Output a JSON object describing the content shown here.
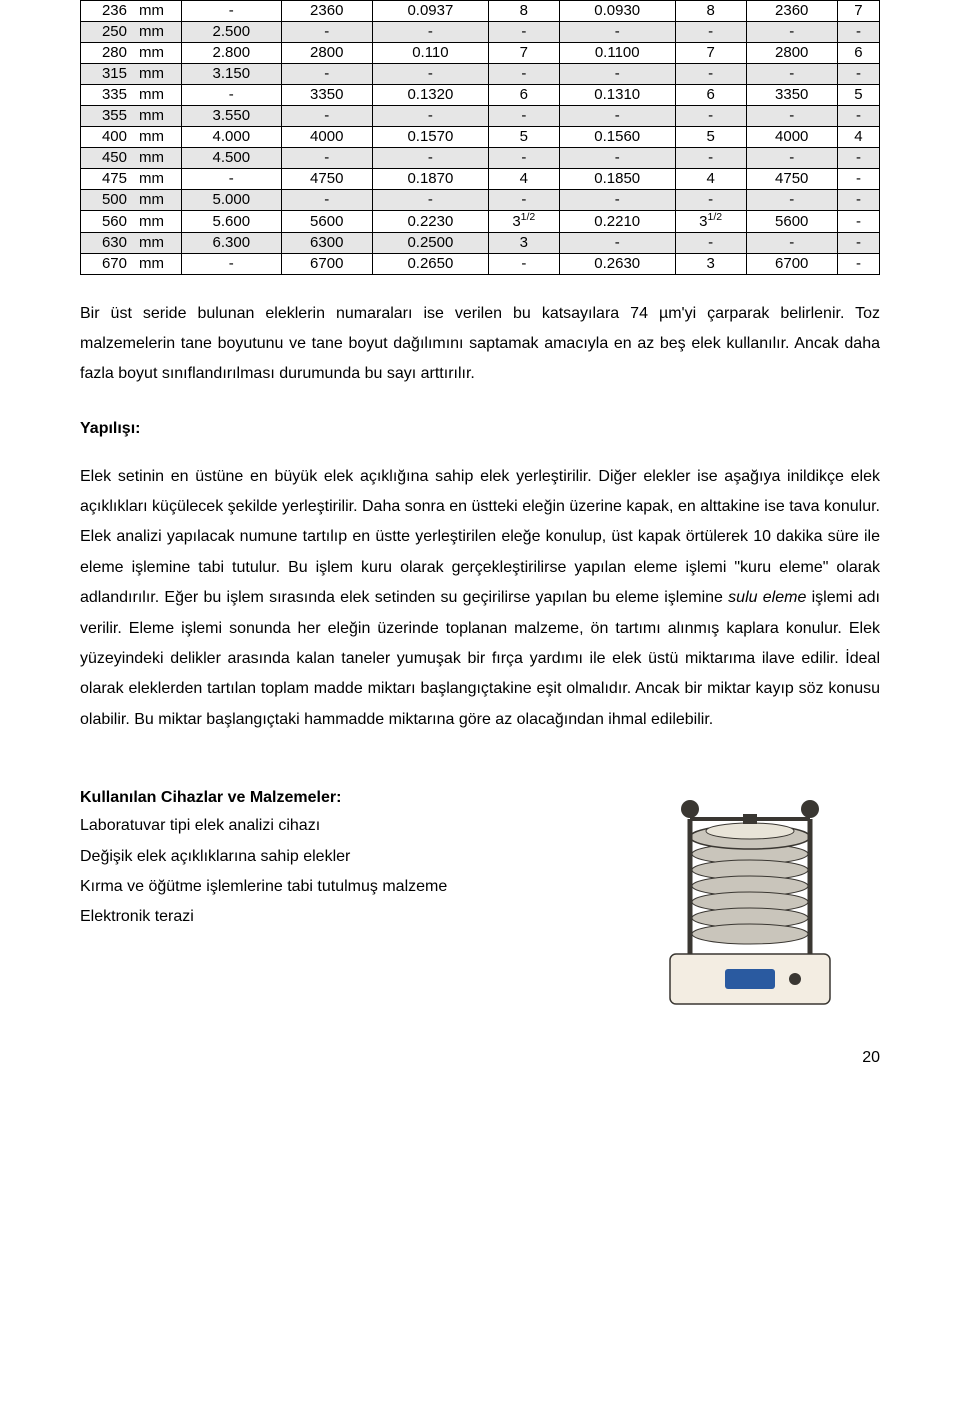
{
  "table": {
    "shaded_color": "#e6e6e6",
    "border_color": "#000000",
    "rows": [
      {
        "shade": false,
        "cells": [
          "236",
          "mm",
          "-",
          "2360",
          "0.0937",
          "8",
          "0.0930",
          "8",
          "2360",
          "7"
        ]
      },
      {
        "shade": true,
        "cells": [
          "250",
          "mm",
          "2.500",
          "-",
          "-",
          "-",
          "-",
          "-",
          "-",
          "-"
        ]
      },
      {
        "shade": false,
        "cells": [
          "280",
          "mm",
          "2.800",
          "2800",
          "0.110",
          "7",
          "0.1100",
          "7",
          "2800",
          "6"
        ]
      },
      {
        "shade": true,
        "cells": [
          "315",
          "mm",
          "3.150",
          "-",
          "-",
          "-",
          "-",
          "-",
          "-",
          "-"
        ]
      },
      {
        "shade": false,
        "cells": [
          "335",
          "mm",
          "-",
          "3350",
          "0.1320",
          "6",
          "0.1310",
          "6",
          "3350",
          "5"
        ]
      },
      {
        "shade": true,
        "cells": [
          "355",
          "mm",
          "3.550",
          "-",
          "-",
          "-",
          "-",
          "-",
          "-",
          "-"
        ]
      },
      {
        "shade": false,
        "cells": [
          "400",
          "mm",
          "4.000",
          "4000",
          "0.1570",
          "5",
          "0.1560",
          "5",
          "4000",
          "4"
        ]
      },
      {
        "shade": true,
        "cells": [
          "450",
          "mm",
          "4.500",
          "-",
          "-",
          "-",
          "-",
          "-",
          "-",
          "-"
        ]
      },
      {
        "shade": false,
        "cells": [
          "475",
          "mm",
          "-",
          "4750",
          "0.1870",
          "4",
          "0.1850",
          "4",
          "4750",
          "-"
        ]
      },
      {
        "shade": true,
        "cells": [
          "500",
          "mm",
          "5.000",
          "-",
          "-",
          "-",
          "-",
          "-",
          "-",
          "-"
        ]
      },
      {
        "shade": false,
        "cells": [
          "560",
          "mm",
          "5.600",
          "5600",
          "0.2230",
          "3<sup>1/2</sup>",
          "0.2210",
          "3<sup>1/2</sup>",
          "5600",
          "-"
        ]
      },
      {
        "shade": true,
        "cells": [
          "630",
          "mm",
          "6.300",
          "6300",
          "0.2500",
          "3",
          "-",
          "-",
          "-",
          "-"
        ]
      },
      {
        "shade": false,
        "cells": [
          "670",
          "mm",
          "-",
          "6700",
          "0.2650",
          "-",
          "0.2630",
          "3",
          "6700",
          "-"
        ]
      }
    ]
  },
  "paragraphs": {
    "p1": "Bir üst seride bulunan eleklerin numaraları ise verilen bu katsayılara 74 µm'yi çarparak belirlenir. Toz malzemelerin tane boyutunu ve tane boyut dağılımını saptamak amacıyla en az beş elek kullanılır. Ancak daha fazla boyut sınıflandırılması durumunda bu sayı arttırılır.",
    "yapilisi_title": "Yapılışı:",
    "p2_a": "Elek setinin en üstüne en büyük elek açıklığına sahip elek yerleştirilir. Diğer elekler ise aşağıya inildikçe elek açıklıkları küçülecek şekilde yerleştirilir. Daha sonra en üstteki eleğin üzerine kapak, en alttakine ise tava konulur. Elek analizi yapılacak numune tartılıp en üstte yerleştirilen eleğe konulup, üst kapak örtülerek 10 dakika süre ile eleme işlemine tabi tutulur. Bu işlem kuru olarak gerçekleştirilirse yapılan eleme işlemi \"kuru eleme\" olarak adlandırılır. Eğer bu işlem sırasında elek setinden su geçirilirse yapılan bu eleme işlemine ",
    "p2_em": "sulu eleme",
    "p2_b": " işlemi adı verilir. Eleme işlemi sonunda her eleğin üzerinde toplanan malzeme, ön tartımı alınmış kaplara konulur. Elek yüzeyindeki delikler arasında kalan taneler yumuşak bir fırça yardımı ile elek üstü miktarıma ilave edilir. İdeal olarak eleklerden tartılan toplam madde miktarı başlangıçtakine eşit olmalıdır. Ancak bir miktar kayıp söz konusu olabilir. Bu miktar başlangıçtaki hammadde miktarına göre az olacağından ihmal edilebilir.",
    "equip_title": "Kullanılan Cihazlar ve Malzemeler:",
    "equip_items": [
      "Laboratuvar tipi elek analizi cihazı",
      "Değişik elek açıklıklarına sahip elekler",
      "Kırma ve öğütme işlemlerine tabi tutulmuş malzeme",
      "Elektronik terazi"
    ]
  },
  "page_number": "20",
  "shaker": {
    "body_color": "#e8e4d8",
    "metal_color": "#c9c5bb",
    "dark_color": "#3a3732",
    "base_color": "#f3ede2",
    "accent_color": "#2a5aa0"
  }
}
